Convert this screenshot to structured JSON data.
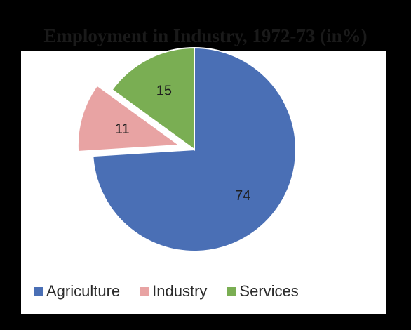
{
  "chart_data": {
    "type": "pie",
    "title": "Employment in Industry, 1972-73 (in%)",
    "categories": [
      "Agriculture",
      "Industry",
      "Services"
    ],
    "values": [
      74,
      11,
      15
    ],
    "colors": [
      "#4A6FB5",
      "#E8A3A3",
      "#7AAE53"
    ],
    "exploded": [
      "Industry"
    ],
    "legend_position": "bottom"
  }
}
